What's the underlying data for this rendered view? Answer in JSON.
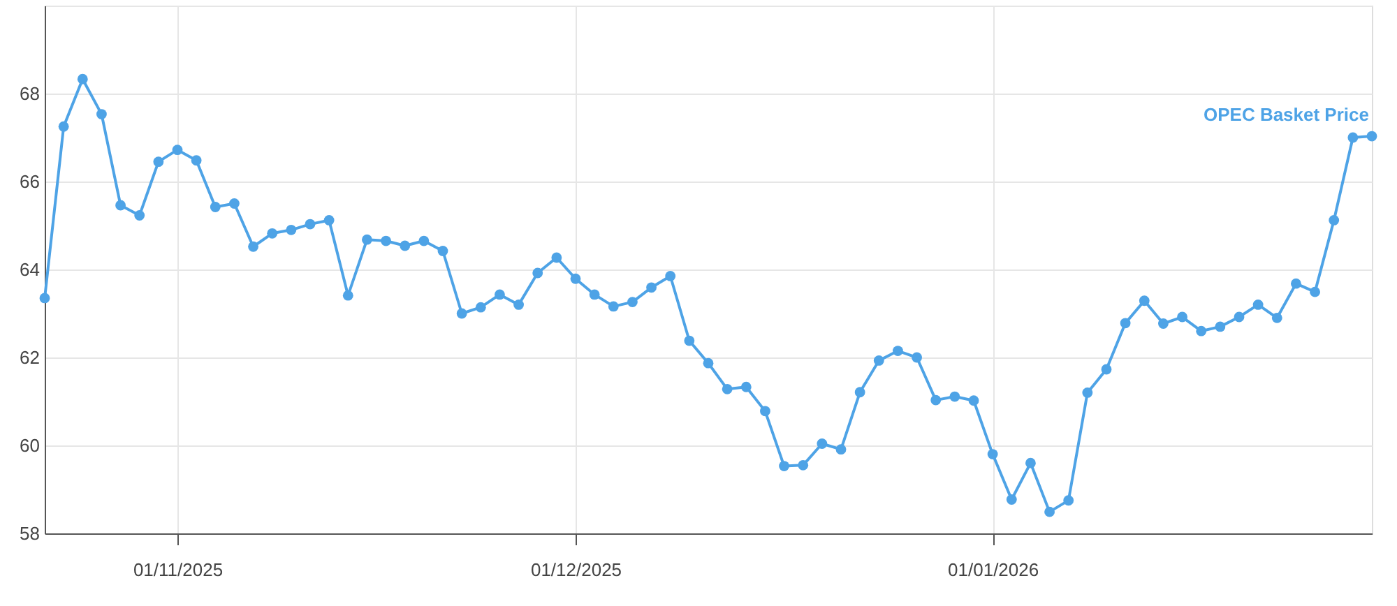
{
  "chart_data": {
    "type": "line",
    "categories": [
      null,
      null,
      null,
      null,
      null,
      null,
      null,
      "01/11/2025",
      null,
      null,
      null,
      null,
      null,
      null,
      null,
      null,
      null,
      null,
      null,
      null,
      null,
      null,
      null,
      null,
      null,
      null,
      null,
      null,
      "01/12/2025",
      null,
      null,
      null,
      null,
      null,
      null,
      null,
      null,
      null,
      null,
      null,
      null,
      null,
      null,
      null,
      null,
      null,
      null,
      null,
      null,
      null,
      "01/01/2026",
      null,
      null,
      null,
      null,
      null,
      null,
      null,
      null,
      null,
      null,
      null,
      null,
      null,
      null,
      null,
      null,
      null,
      null,
      null,
      null
    ],
    "series": [
      {
        "name": "OPEC Basket Price",
        "color": "#4ea3e6",
        "values": [
          63.35,
          67.25,
          68.33,
          67.53,
          65.46,
          65.23,
          66.45,
          66.72,
          66.48,
          65.42,
          65.5,
          64.52,
          64.82,
          64.9,
          65.03,
          65.12,
          63.41,
          64.68,
          64.65,
          64.54,
          64.65,
          64.42,
          63.0,
          63.14,
          63.43,
          63.2,
          63.92,
          64.27,
          63.79,
          63.43,
          63.16,
          63.26,
          63.59,
          63.85,
          62.38,
          61.87,
          61.28,
          61.33,
          60.78,
          59.53,
          59.55,
          60.04,
          59.91,
          61.21,
          61.93,
          62.15,
          62.0,
          61.03,
          61.11,
          61.02,
          59.8,
          58.77,
          59.6,
          58.49,
          58.75,
          61.2,
          61.73,
          62.78,
          63.29,
          62.77,
          62.92,
          62.6,
          62.7,
          62.92,
          63.2,
          62.9,
          63.68,
          63.49,
          65.12,
          67.0,
          67.03
        ]
      }
    ],
    "ylim": [
      58,
      70
    ],
    "yticks": [
      58,
      60,
      62,
      64,
      66,
      68,
      {
        "value": 70,
        "label": null
      }
    ],
    "grid": true,
    "legend": false,
    "marker": "circle",
    "line_style": "solid"
  }
}
